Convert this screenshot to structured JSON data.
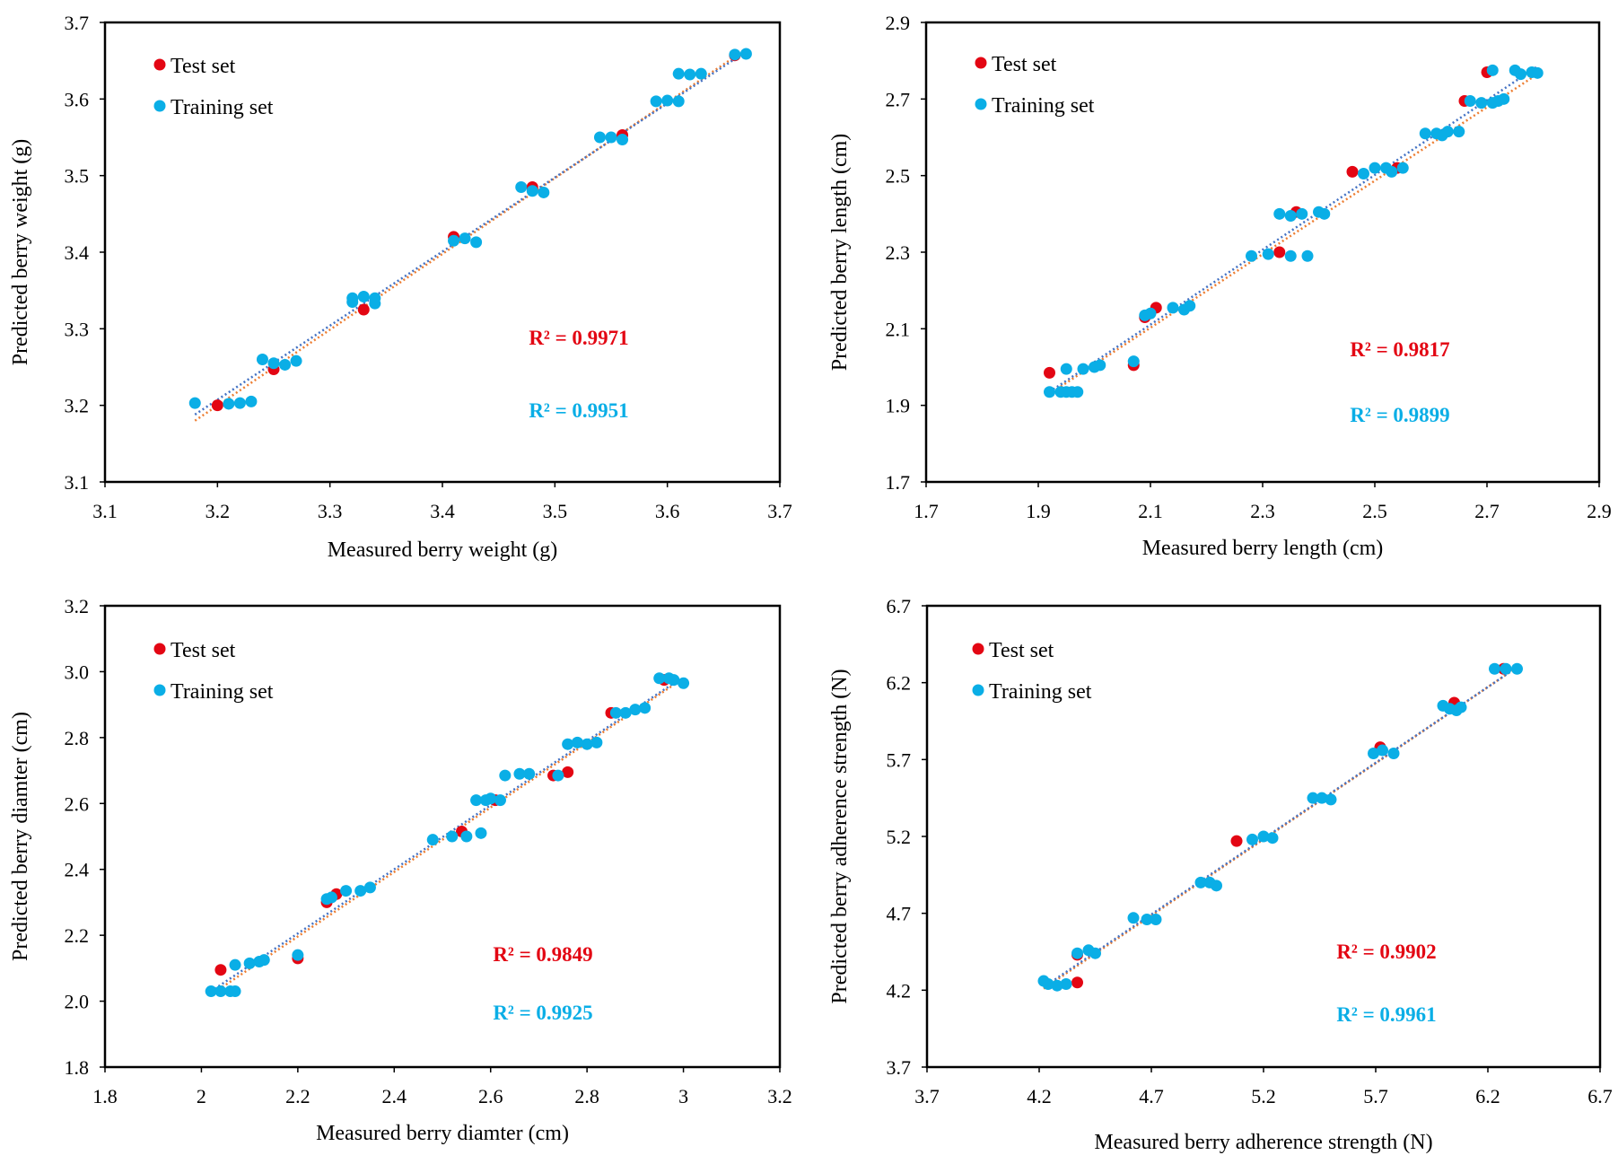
{
  "colors": {
    "test": "#e30613",
    "train": "#0aaee6",
    "trend_test": "#ed7d31",
    "trend_train": "#4472c4"
  },
  "chart_data": [
    {
      "type": "scatter",
      "xlabel": "Measured berry weight (g)",
      "ylabel": "Predicted berry weight  (g)",
      "xlim": [
        3.1,
        3.7
      ],
      "ylim": [
        3.1,
        3.7
      ],
      "xticks": [
        "3.1",
        "3.2",
        "3.3",
        "3.4",
        "3.5",
        "3.6",
        "3.7"
      ],
      "yticks": [
        "3.1",
        "3.2",
        "3.3",
        "3.4",
        "3.5",
        "3.6",
        "3.7"
      ],
      "legend": [
        "Test set",
        "Training set"
      ],
      "r2_test": "R² = 0.9971",
      "r2_train": "R² = 0.9951",
      "test_points": [
        [
          3.2,
          3.2
        ],
        [
          3.25,
          3.247
        ],
        [
          3.33,
          3.325
        ],
        [
          3.41,
          3.42
        ],
        [
          3.48,
          3.485
        ],
        [
          3.56,
          3.553
        ],
        [
          3.66,
          3.657
        ]
      ],
      "train_points": [
        [
          3.18,
          3.203
        ],
        [
          3.21,
          3.202
        ],
        [
          3.22,
          3.203
        ],
        [
          3.23,
          3.205
        ],
        [
          3.24,
          3.26
        ],
        [
          3.25,
          3.255
        ],
        [
          3.26,
          3.253
        ],
        [
          3.27,
          3.258
        ],
        [
          3.32,
          3.34
        ],
        [
          3.32,
          3.335
        ],
        [
          3.33,
          3.342
        ],
        [
          3.34,
          3.34
        ],
        [
          3.34,
          3.333
        ],
        [
          3.41,
          3.415
        ],
        [
          3.42,
          3.418
        ],
        [
          3.43,
          3.413
        ],
        [
          3.47,
          3.485
        ],
        [
          3.48,
          3.48
        ],
        [
          3.49,
          3.478
        ],
        [
          3.54,
          3.55
        ],
        [
          3.55,
          3.55
        ],
        [
          3.56,
          3.547
        ],
        [
          3.59,
          3.597
        ],
        [
          3.6,
          3.598
        ],
        [
          3.61,
          3.597
        ],
        [
          3.61,
          3.633
        ],
        [
          3.62,
          3.632
        ],
        [
          3.63,
          3.633
        ],
        [
          3.66,
          3.658
        ],
        [
          3.67,
          3.659
        ]
      ],
      "trend_test": [
        [
          3.18,
          3.18
        ],
        [
          3.67,
          3.665
        ]
      ],
      "trend_train": [
        [
          3.18,
          3.188
        ],
        [
          3.67,
          3.662
        ]
      ]
    },
    {
      "type": "scatter",
      "xlabel": "Measured berry length (cm)",
      "ylabel": "Predicted berry length  (cm)",
      "xlim": [
        1.7,
        2.9
      ],
      "ylim": [
        1.7,
        2.9
      ],
      "xticks": [
        "1.7",
        "1.9",
        "2.1",
        "2.3",
        "2.5",
        "2.7",
        "2.9"
      ],
      "yticks": [
        "1.7",
        "1.9",
        "2.1",
        "2.3",
        "2.5",
        "2.7",
        "2.9"
      ],
      "legend": [
        "Test set",
        "Training set"
      ],
      "r2_test": "R² = 0.9817",
      "r2_train": "R² = 0.9899",
      "test_points": [
        [
          1.92,
          1.985
        ],
        [
          2.07,
          2.005
        ],
        [
          2.09,
          2.13
        ],
        [
          2.11,
          2.155
        ],
        [
          2.33,
          2.3
        ],
        [
          2.36,
          2.405
        ],
        [
          2.46,
          2.51
        ],
        [
          2.54,
          2.52
        ],
        [
          2.66,
          2.695
        ],
        [
          2.7,
          2.77
        ]
      ],
      "train_points": [
        [
          1.92,
          1.935
        ],
        [
          1.94,
          1.935
        ],
        [
          1.95,
          1.935
        ],
        [
          1.96,
          1.935
        ],
        [
          1.97,
          1.935
        ],
        [
          1.95,
          1.995
        ],
        [
          1.98,
          1.995
        ],
        [
          2.0,
          2.0
        ],
        [
          2.01,
          2.005
        ],
        [
          2.07,
          2.015
        ],
        [
          2.09,
          2.135
        ],
        [
          2.1,
          2.14
        ],
        [
          2.14,
          2.155
        ],
        [
          2.16,
          2.15
        ],
        [
          2.17,
          2.16
        ],
        [
          2.28,
          2.29
        ],
        [
          2.31,
          2.295
        ],
        [
          2.33,
          2.4
        ],
        [
          2.35,
          2.29
        ],
        [
          2.35,
          2.395
        ],
        [
          2.37,
          2.4
        ],
        [
          2.38,
          2.29
        ],
        [
          2.4,
          2.405
        ],
        [
          2.41,
          2.4
        ],
        [
          2.48,
          2.505
        ],
        [
          2.5,
          2.52
        ],
        [
          2.52,
          2.52
        ],
        [
          2.53,
          2.51
        ],
        [
          2.55,
          2.52
        ],
        [
          2.59,
          2.61
        ],
        [
          2.61,
          2.61
        ],
        [
          2.62,
          2.605
        ],
        [
          2.63,
          2.615
        ],
        [
          2.65,
          2.615
        ],
        [
          2.67,
          2.695
        ],
        [
          2.69,
          2.69
        ],
        [
          2.71,
          2.69
        ],
        [
          2.72,
          2.695
        ],
        [
          2.73,
          2.7
        ],
        [
          2.71,
          2.775
        ],
        [
          2.75,
          2.775
        ],
        [
          2.76,
          2.765
        ],
        [
          2.78,
          2.77
        ],
        [
          2.79,
          2.768
        ]
      ],
      "trend_test": [
        [
          1.92,
          1.93
        ],
        [
          2.79,
          2.765
        ]
      ],
      "trend_train": [
        [
          1.92,
          1.935
        ],
        [
          2.79,
          2.785
        ]
      ]
    },
    {
      "type": "scatter",
      "xlabel": "Measured berry diamter  (cm)",
      "ylabel": "Predicted berry diamter (cm)",
      "xlim": [
        1.8,
        3.2
      ],
      "ylim": [
        1.8,
        3.2
      ],
      "xticks": [
        "1.8",
        "2",
        "2.2",
        "2.4",
        "2.6",
        "2.8",
        "3",
        "3.2"
      ],
      "yticks": [
        "1.8",
        "2.0",
        "2.2",
        "2.4",
        "2.6",
        "2.8",
        "3.0",
        "3.2"
      ],
      "legend": [
        "Test set",
        "Training set"
      ],
      "r2_test": "R² = 0.9849",
      "r2_train": "R² = 0.9925",
      "test_points": [
        [
          2.04,
          2.095
        ],
        [
          2.2,
          2.13
        ],
        [
          2.26,
          2.3
        ],
        [
          2.28,
          2.325
        ],
        [
          2.54,
          2.515
        ],
        [
          2.61,
          2.61
        ],
        [
          2.73,
          2.685
        ],
        [
          2.76,
          2.695
        ],
        [
          2.85,
          2.875
        ],
        [
          2.96,
          2.975
        ]
      ],
      "train_points": [
        [
          2.02,
          2.03
        ],
        [
          2.04,
          2.03
        ],
        [
          2.06,
          2.03
        ],
        [
          2.07,
          2.03
        ],
        [
          2.07,
          2.11
        ],
        [
          2.1,
          2.115
        ],
        [
          2.12,
          2.12
        ],
        [
          2.13,
          2.125
        ],
        [
          2.2,
          2.14
        ],
        [
          2.26,
          2.31
        ],
        [
          2.27,
          2.315
        ],
        [
          2.3,
          2.335
        ],
        [
          2.33,
          2.335
        ],
        [
          2.35,
          2.345
        ],
        [
          2.48,
          2.49
        ],
        [
          2.52,
          2.5
        ],
        [
          2.55,
          2.5
        ],
        [
          2.58,
          2.51
        ],
        [
          2.57,
          2.61
        ],
        [
          2.59,
          2.61
        ],
        [
          2.6,
          2.615
        ],
        [
          2.62,
          2.61
        ],
        [
          2.63,
          2.685
        ],
        [
          2.66,
          2.69
        ],
        [
          2.68,
          2.69
        ],
        [
          2.74,
          2.685
        ],
        [
          2.76,
          2.78
        ],
        [
          2.78,
          2.785
        ],
        [
          2.8,
          2.78
        ],
        [
          2.82,
          2.785
        ],
        [
          2.86,
          2.875
        ],
        [
          2.88,
          2.875
        ],
        [
          2.9,
          2.885
        ],
        [
          2.92,
          2.89
        ],
        [
          2.95,
          2.98
        ],
        [
          2.97,
          2.98
        ],
        [
          2.98,
          2.975
        ],
        [
          3.0,
          2.965
        ]
      ],
      "trend_test": [
        [
          2.02,
          2.02
        ],
        [
          2.99,
          2.97
        ]
      ],
      "trend_train": [
        [
          2.02,
          2.03
        ],
        [
          2.99,
          2.975
        ]
      ]
    },
    {
      "type": "scatter",
      "xlabel": "Measured berry  adherence strength  (N)",
      "ylabel": "Predicted  berry adherence strength   (N)",
      "xlim": [
        3.7,
        6.7
      ],
      "ylim": [
        3.7,
        6.7
      ],
      "xticks": [
        "3.7",
        "4.2",
        "4.7",
        "5.2",
        "5.7",
        "6.2",
        "6.7"
      ],
      "yticks": [
        "3.7",
        "4.2",
        "4.7",
        "5.2",
        "5.7",
        "6.2",
        "6.7"
      ],
      "legend": [
        "Test set",
        "Training set"
      ],
      "r2_test": "R² = 0.9902",
      "r2_train": "R² = 0.9961",
      "test_points": [
        [
          4.37,
          4.25
        ],
        [
          4.37,
          4.43
        ],
        [
          5.08,
          5.17
        ],
        [
          5.72,
          5.78
        ],
        [
          6.05,
          6.07
        ],
        [
          6.27,
          6.29
        ]
      ],
      "train_points": [
        [
          4.22,
          4.26
        ],
        [
          4.24,
          4.24
        ],
        [
          4.28,
          4.23
        ],
        [
          4.32,
          4.24
        ],
        [
          4.37,
          4.44
        ],
        [
          4.42,
          4.46
        ],
        [
          4.45,
          4.44
        ],
        [
          4.62,
          4.67
        ],
        [
          4.68,
          4.66
        ],
        [
          4.72,
          4.66
        ],
        [
          4.92,
          4.9
        ],
        [
          4.96,
          4.9
        ],
        [
          4.99,
          4.88
        ],
        [
          5.15,
          5.18
        ],
        [
          5.2,
          5.2
        ],
        [
          5.24,
          5.19
        ],
        [
          5.42,
          5.45
        ],
        [
          5.46,
          5.45
        ],
        [
          5.5,
          5.44
        ],
        [
          5.69,
          5.74
        ],
        [
          5.73,
          5.76
        ],
        [
          5.78,
          5.74
        ],
        [
          6.0,
          6.05
        ],
        [
          6.03,
          6.03
        ],
        [
          6.06,
          6.02
        ],
        [
          6.08,
          6.04
        ],
        [
          6.23,
          6.29
        ],
        [
          6.28,
          6.29
        ],
        [
          6.33,
          6.29
        ]
      ],
      "trend_test": [
        [
          4.22,
          4.21
        ],
        [
          6.33,
          6.3
        ]
      ],
      "trend_train": [
        [
          4.22,
          4.22
        ],
        [
          6.33,
          6.3
        ]
      ]
    }
  ]
}
